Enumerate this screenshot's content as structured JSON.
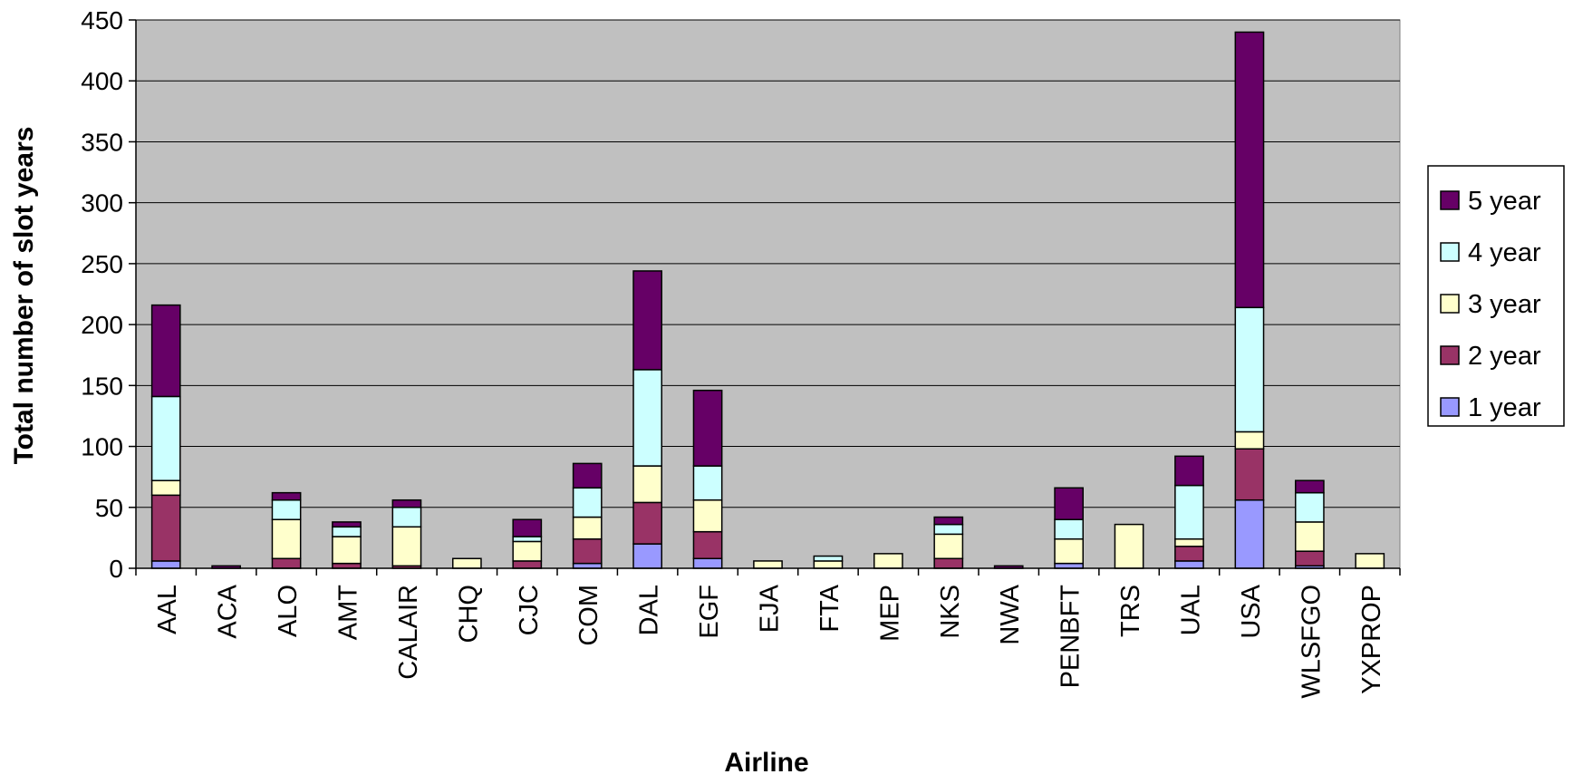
{
  "chart_data": {
    "type": "bar",
    "stacked": true,
    "title": "",
    "xlabel": "Airline",
    "ylabel": "Total number of slot years",
    "ylim": [
      0,
      450
    ],
    "yticks": [
      0,
      50,
      100,
      150,
      200,
      250,
      300,
      350,
      400,
      450
    ],
    "grid": true,
    "legend_position": "right",
    "categories": [
      "AAL",
      "ACA",
      "ALO",
      "AMT",
      "CALAIR",
      "CHQ",
      "CJC",
      "COM",
      "DAL",
      "EGF",
      "EJA",
      "FTA",
      "MEP",
      "NKS",
      "NWA",
      "PENBFT",
      "TRS",
      "UAL",
      "USA",
      "WLSFGO",
      "YXPROP"
    ],
    "series": [
      {
        "name": "1 year",
        "color": "#9999ff",
        "values": [
          6,
          0,
          0,
          0,
          0,
          0,
          0,
          4,
          20,
          8,
          0,
          0,
          0,
          0,
          0,
          4,
          0,
          6,
          56,
          2,
          0
        ]
      },
      {
        "name": "2 year",
        "color": "#993366",
        "values": [
          54,
          0,
          8,
          4,
          2,
          0,
          6,
          20,
          34,
          22,
          0,
          0,
          0,
          8,
          0,
          0,
          0,
          12,
          42,
          12,
          0
        ]
      },
      {
        "name": "3 year",
        "color": "#ffffcc",
        "values": [
          12,
          0,
          32,
          22,
          32,
          8,
          16,
          18,
          30,
          26,
          6,
          6,
          12,
          20,
          0,
          20,
          36,
          6,
          14,
          24,
          12
        ]
      },
      {
        "name": "4 year",
        "color": "#ccffff",
        "values": [
          69,
          0,
          16,
          8,
          16,
          0,
          4,
          24,
          79,
          28,
          0,
          4,
          0,
          8,
          0,
          16,
          0,
          44,
          102,
          24,
          0
        ]
      },
      {
        "name": "5 year",
        "color": "#660066",
        "values": [
          75,
          2,
          6,
          4,
          6,
          0,
          14,
          20,
          81,
          62,
          0,
          0,
          0,
          6,
          2,
          26,
          0,
          24,
          226,
          10,
          0
        ]
      }
    ],
    "colors": {
      "plot_background": "#c0c0c0",
      "gridline": "#000000"
    }
  }
}
